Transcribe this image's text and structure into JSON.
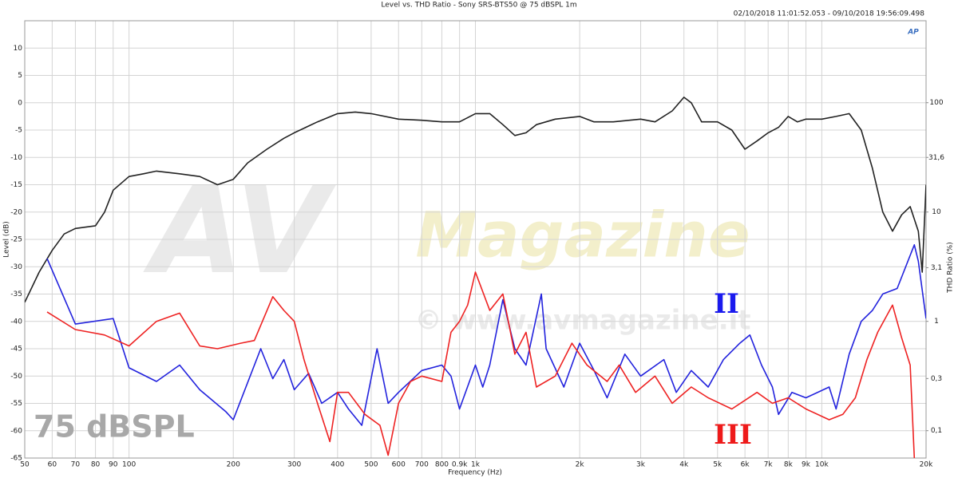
{
  "chart_data": {
    "type": "line",
    "title": "Level vs. THD Ratio - Sony SRS-BTS50 @ 75 dBSPL 1m",
    "subtitle": "02/10/2018 11:01:52.053 - 09/10/2018 19:56:09.498",
    "xlabel": "Frequency (Hz)",
    "ylabel": "Level (dB)",
    "y2label": "THD Ratio (%)",
    "xscale": "log",
    "y2scale": "log",
    "grid": true,
    "xlim": [
      50,
      20000
    ],
    "ylim": [
      -65,
      15
    ],
    "y2lim": [
      0.0562,
      562
    ],
    "xticks": [
      50,
      60,
      70,
      80,
      90,
      100,
      200,
      300,
      400,
      500,
      600,
      700,
      800,
      {
        "value": 900,
        "label": "0.9k"
      },
      {
        "value": 1000,
        "label": "1k"
      },
      {
        "value": 2000,
        "label": "2k"
      },
      {
        "value": 3000,
        "label": "3k"
      },
      {
        "value": 4000,
        "label": "4k"
      },
      {
        "value": 5000,
        "label": "5k"
      },
      {
        "value": 6000,
        "label": "6k"
      },
      {
        "value": 7000,
        "label": "7k"
      },
      {
        "value": 8000,
        "label": "8k"
      },
      {
        "value": 9000,
        "label": "9k"
      },
      {
        "value": 10000,
        "label": "10k"
      },
      {
        "value": 20000,
        "label": "20k"
      }
    ],
    "yticks": [
      10,
      5,
      0,
      -5,
      -10,
      -15,
      -20,
      -25,
      -30,
      -35,
      -40,
      -45,
      -50,
      -55,
      -60,
      -65
    ],
    "y2ticks": [
      100,
      {
        "value": 31.6,
        "label": "31,6"
      },
      10,
      {
        "value": 3.1,
        "label": "3,1"
      },
      1,
      {
        "value": 0.3,
        "label": "0,3"
      },
      {
        "value": 0.1,
        "label": "0,1"
      }
    ],
    "annotations": [
      "II",
      "III",
      "75 dBSPL",
      "AP"
    ],
    "watermark": [
      "AV",
      "Magazine",
      "© www.avmagazine.it"
    ],
    "series": [
      {
        "color": "#222222",
        "x": [
          50,
          55,
          60,
          65,
          70,
          80,
          85,
          90,
          100,
          110,
          120,
          140,
          160,
          180,
          200,
          220,
          250,
          280,
          300,
          350,
          400,
          450,
          500,
          600,
          700,
          800,
          900,
          1000,
          1100,
          1200,
          1300,
          1400,
          1500,
          1700,
          2000,
          2200,
          2500,
          3000,
          3300,
          3700,
          4000,
          4200,
          4500,
          5000,
          5500,
          6000,
          6500,
          7000,
          7500,
          8000,
          8500,
          9000,
          10000,
          11000,
          12000,
          13000,
          14000,
          15000,
          16000,
          17000,
          18000,
          19000,
          19500,
          20000
        ],
        "values": [
          -36.5,
          -31,
          -27,
          -24,
          -23,
          -22.5,
          -20,
          -16,
          -13.5,
          -13,
          -12.5,
          -13,
          -13.5,
          -15,
          -14,
          -11,
          -8.5,
          -6.5,
          -5.5,
          -3.5,
          -2,
          -1.7,
          -2,
          -3,
          -3.2,
          -3.5,
          -3.5,
          -2,
          -2,
          -4,
          -6,
          -5.5,
          -4,
          -3,
          -2.5,
          -3.5,
          -3.5,
          -3,
          -3.5,
          -1.5,
          1,
          0,
          -3.5,
          -3.5,
          -5,
          -8.5,
          -7,
          -5.5,
          -4.5,
          -2.5,
          -3.5,
          -3,
          -3,
          -2.5,
          -2,
          -5,
          -12,
          -20,
          -23.5,
          -20.5,
          -19,
          -23.5,
          -31,
          -15
        ]
      },
      {
        "color": "#2222dd",
        "axis": "y2",
        "x": [
          58,
          70,
          90,
          100,
          120,
          140,
          160,
          190,
          200,
          240,
          260,
          280,
          300,
          330,
          360,
          400,
          430,
          470,
          520,
          560,
          600,
          700,
          800,
          850,
          900,
          1000,
          1050,
          1100,
          1200,
          1300,
          1400,
          1550,
          1600,
          1800,
          2000,
          2200,
          2400,
          2700,
          3000,
          3500,
          3800,
          4200,
          4700,
          5200,
          5800,
          6200,
          6700,
          7200,
          7500,
          8200,
          9000,
          10500,
          11000,
          12000,
          13000,
          14000,
          15000,
          16500,
          18500,
          19000,
          20000
        ],
        "values": [
          3.76,
          0.944,
          1.06,
          0.376,
          0.282,
          0.398,
          0.237,
          0.15,
          0.126,
          0.562,
          0.299,
          0.447,
          0.237,
          0.335,
          0.178,
          0.224,
          0.158,
          0.112,
          0.562,
          0.178,
          0.224,
          0.355,
          0.398,
          0.316,
          0.158,
          0.398,
          0.251,
          0.398,
          1.58,
          0.562,
          0.398,
          1.78,
          0.562,
          0.251,
          0.631,
          0.355,
          0.2,
          0.501,
          0.316,
          0.447,
          0.224,
          0.355,
          0.251,
          0.447,
          0.631,
          0.75,
          0.398,
          0.251,
          0.141,
          0.224,
          0.2,
          0.251,
          0.158,
          0.501,
          1.0,
          1.26,
          1.78,
          2.0,
          5.01,
          3.55,
          1.06
        ]
      },
      {
        "color": "#ee2222",
        "axis": "y2",
        "x": [
          58,
          70,
          85,
          100,
          120,
          140,
          160,
          180,
          210,
          230,
          260,
          280,
          300,
          320,
          350,
          380,
          400,
          430,
          480,
          530,
          560,
          600,
          650,
          700,
          800,
          850,
          900,
          950,
          1000,
          1100,
          1200,
          1300,
          1400,
          1500,
          1700,
          1900,
          2100,
          2400,
          2600,
          2900,
          3300,
          3700,
          4200,
          4700,
          5500,
          6500,
          7200,
          8000,
          9000,
          10500,
          11500,
          12500,
          13500,
          14500,
          16000,
          17000,
          18000,
          18500
        ],
        "values": [
          1.22,
          0.841,
          0.75,
          0.596,
          1.0,
          1.19,
          0.596,
          0.562,
          0.631,
          0.668,
          1.68,
          1.26,
          1.0,
          0.447,
          0.178,
          0.0794,
          0.224,
          0.224,
          0.141,
          0.112,
          0.0596,
          0.178,
          0.282,
          0.316,
          0.282,
          0.794,
          1.0,
          1.41,
          2.82,
          1.26,
          1.78,
          0.501,
          0.794,
          0.251,
          0.316,
          0.631,
          0.398,
          0.282,
          0.398,
          0.224,
          0.316,
          0.178,
          0.251,
          0.2,
          0.158,
          0.224,
          0.178,
          0.2,
          0.158,
          0.126,
          0.141,
          0.2,
          0.447,
          0.794,
          1.41,
          0.708,
          0.398,
          0.0562
        ]
      }
    ]
  }
}
